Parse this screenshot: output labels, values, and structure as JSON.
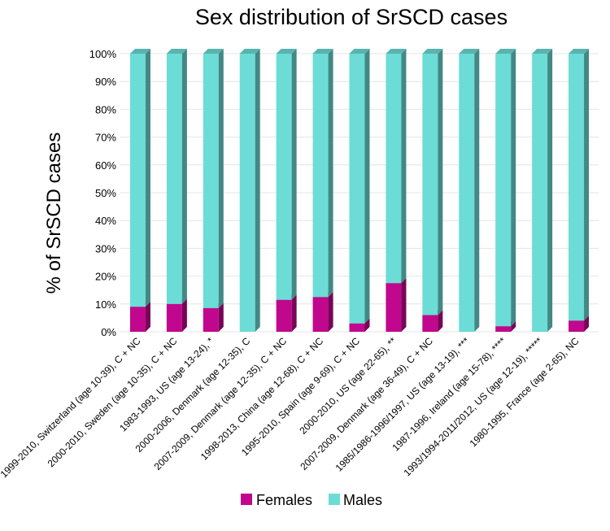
{
  "chart_data": {
    "type": "bar",
    "stacked": true,
    "title": "Sex distribution of SrSCD cases",
    "xlabel": "",
    "ylabel": "% of SrSCD cases",
    "ylim": [
      0,
      100
    ],
    "yticks": [
      "0%",
      "10%",
      "20%",
      "30%",
      "40%",
      "50%",
      "60%",
      "70%",
      "80%",
      "90%",
      "100%"
    ],
    "categories": [
      "1999-2010, Switzerland (age 10-39), C + NC",
      "2000-2010, Sweden (age 10-35), C + NC",
      "1983-1993, US (age 13-24), *",
      "2000-2006, Denmark (age 12-35), C",
      "2007-2009, Denmark (age 12-35), C + NC",
      "1998-2013, China (age 12-68), C + NC",
      "1995-2010, Spain (age 9-69), C + NC",
      "2000-2010, US (age 22-65), **",
      "2007-2009, Denmark (age 36-49), C + NC",
      "1985/1986-1996/1997, US (age 13-19), ***",
      "1987-1996, Ireland (age 15-78), ****",
      "1993/1994-2011/2012, US (age 12-19), *****",
      "1980-1995, France (age 2-65), NC"
    ],
    "series": [
      {
        "name": "Females",
        "color": "#c0078d",
        "values": [
          9,
          10,
          8.5,
          0,
          11.5,
          12.5,
          3,
          17.5,
          6,
          0,
          2,
          0,
          4
        ]
      },
      {
        "name": "Males",
        "color": "#6cdcd6",
        "values": [
          91,
          90,
          91.5,
          100,
          88.5,
          87.5,
          97,
          82.5,
          94,
          100,
          98,
          100,
          96
        ]
      }
    ],
    "legend": {
      "position": "bottom",
      "entries": [
        "Females",
        "Males"
      ]
    }
  }
}
